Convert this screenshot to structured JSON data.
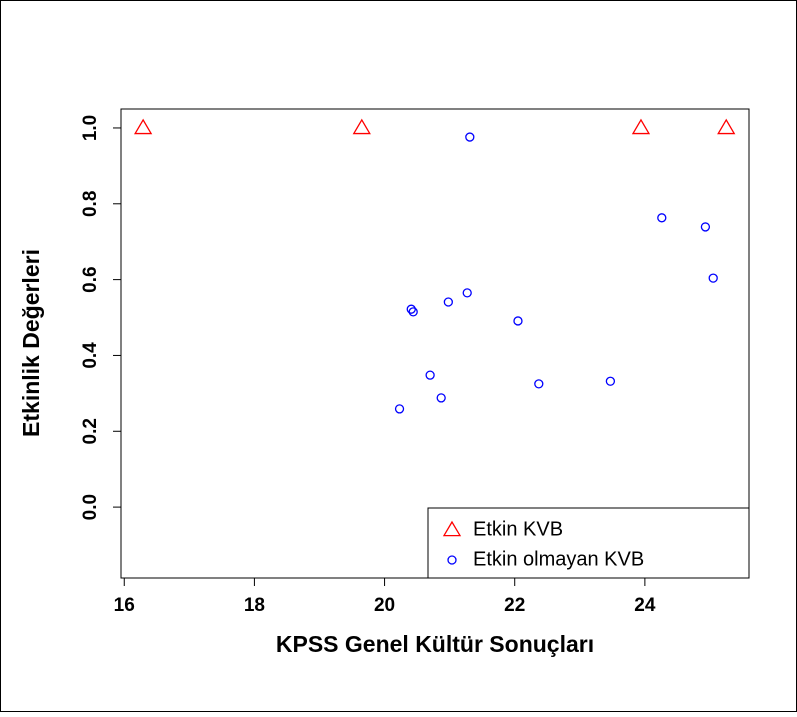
{
  "chart_data": {
    "type": "scatter",
    "xlabel": "KPSS Genel Kültür Sonuçları",
    "ylabel": "Etkinlik Değerleri",
    "xlim": [
      15.95,
      25.6
    ],
    "ylim": [
      -0.187,
      1.05
    ],
    "xticks": [
      16,
      18,
      20,
      22,
      24
    ],
    "yticks": [
      {
        "value": 0,
        "label": "0.0"
      },
      0.2,
      0.4,
      0.6,
      0.8,
      {
        "value": 1,
        "label": "1.0"
      }
    ],
    "legend": "bottom-right",
    "series": [
      {
        "name": "Etkin KVB",
        "color": "#ff0000",
        "marker": "triangle",
        "x": [
          16.29,
          19.65,
          23.94,
          25.25
        ],
        "values": [
          1,
          1,
          1,
          1
        ]
      },
      {
        "name": "Etkin olmayan KVB",
        "color": "#0000ff",
        "marker": "circle",
        "x": [
          21.31,
          24.26,
          24.93,
          25.05,
          21.27,
          20.98,
          20.41,
          20.44,
          22.05,
          20.7,
          23.47,
          22.37,
          20.87,
          20.23
        ],
        "values": [
          0.976,
          0.763,
          0.739,
          0.604,
          0.565,
          0.541,
          0.522,
          0.515,
          0.491,
          0.348,
          0.332,
          0.325,
          0.288,
          0.259
        ]
      }
    ]
  }
}
